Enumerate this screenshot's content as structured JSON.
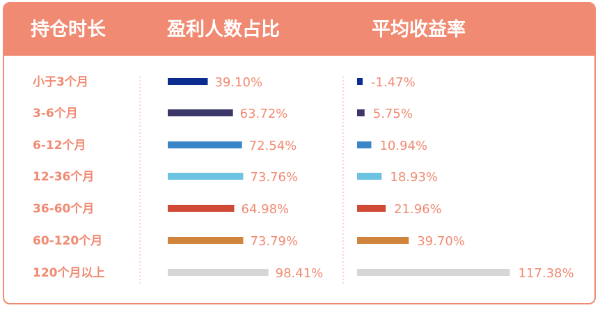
{
  "header": {
    "col1": "持仓时长",
    "col2": "盈利人数占比",
    "col3": "平均收益率"
  },
  "colors": {
    "header_bg": "#f08a72",
    "text": "#f08a72",
    "divider": "#f3a896"
  },
  "chart_data": {
    "type": "bar",
    "categories": [
      "小于3个月",
      "3-6个月",
      "6-12个月",
      "12-36个月",
      "36-60个月",
      "60-120个月",
      "120个月以上"
    ],
    "colors": [
      "#0a2d8f",
      "#3b3768",
      "#3a86c8",
      "#6cc4e2",
      "#cf4934",
      "#d0843c",
      "#d6d6d6"
    ],
    "series": [
      {
        "name": "盈利人数占比",
        "values": [
          39.1,
          63.72,
          72.54,
          73.76,
          64.98,
          73.79,
          98.41
        ],
        "labels": [
          "39.10%",
          "63.72%",
          "72.54%",
          "73.76%",
          "64.98%",
          "73.79%",
          "98.41%"
        ]
      },
      {
        "name": "平均收益率",
        "values": [
          -1.47,
          5.75,
          10.94,
          18.93,
          21.96,
          39.7,
          117.38
        ],
        "labels": [
          "-1.47%",
          "5.75%",
          "10.94%",
          "18.93%",
          "21.96%",
          "39.70%",
          "117.38%"
        ]
      }
    ]
  }
}
